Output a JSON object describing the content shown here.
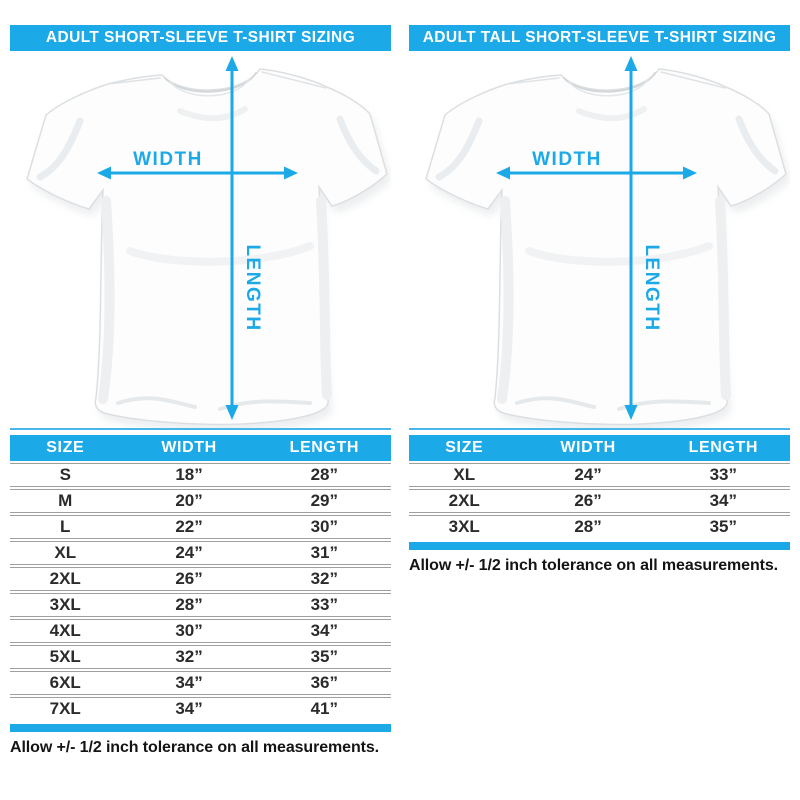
{
  "colors": {
    "accent": "#1ca9e8",
    "rule": "#49b6ea",
    "cell": "#2b2b2b",
    "sep": "#9f9f9f",
    "note": "#141414"
  },
  "chart_data": [
    {
      "type": "table",
      "title": "ADULT SHORT-SLEEVE T-SHIRT SIZING",
      "diagram": {
        "width_label": "WIDTH",
        "length_label": "LENGTH"
      },
      "columns": [
        "SIZE",
        "WIDTH",
        "LENGTH"
      ],
      "rows": [
        [
          "S",
          "18”",
          "28”"
        ],
        [
          "M",
          "20”",
          "29”"
        ],
        [
          "L",
          "22”",
          "30”"
        ],
        [
          "XL",
          "24”",
          "31”"
        ],
        [
          "2XL",
          "26”",
          "32”"
        ],
        [
          "3XL",
          "28”",
          "33”"
        ],
        [
          "4XL",
          "30”",
          "34”"
        ],
        [
          "5XL",
          "32”",
          "35”"
        ],
        [
          "6XL",
          "34”",
          "36”"
        ],
        [
          "7XL",
          "34”",
          "41”"
        ]
      ],
      "note": "Allow +/- 1/2 inch tolerance on all measurements."
    },
    {
      "type": "table",
      "title": "ADULT TALL SHORT-SLEEVE T-SHIRT SIZING",
      "diagram": {
        "width_label": "WIDTH",
        "length_label": "LENGTH"
      },
      "columns": [
        "SIZE",
        "WIDTH",
        "LENGTH"
      ],
      "rows": [
        [
          "XL",
          "24”",
          "33”"
        ],
        [
          "2XL",
          "26”",
          "34”"
        ],
        [
          "3XL",
          "28”",
          "35”"
        ]
      ],
      "note": "Allow +/- 1/2 inch tolerance on all measurements."
    }
  ]
}
